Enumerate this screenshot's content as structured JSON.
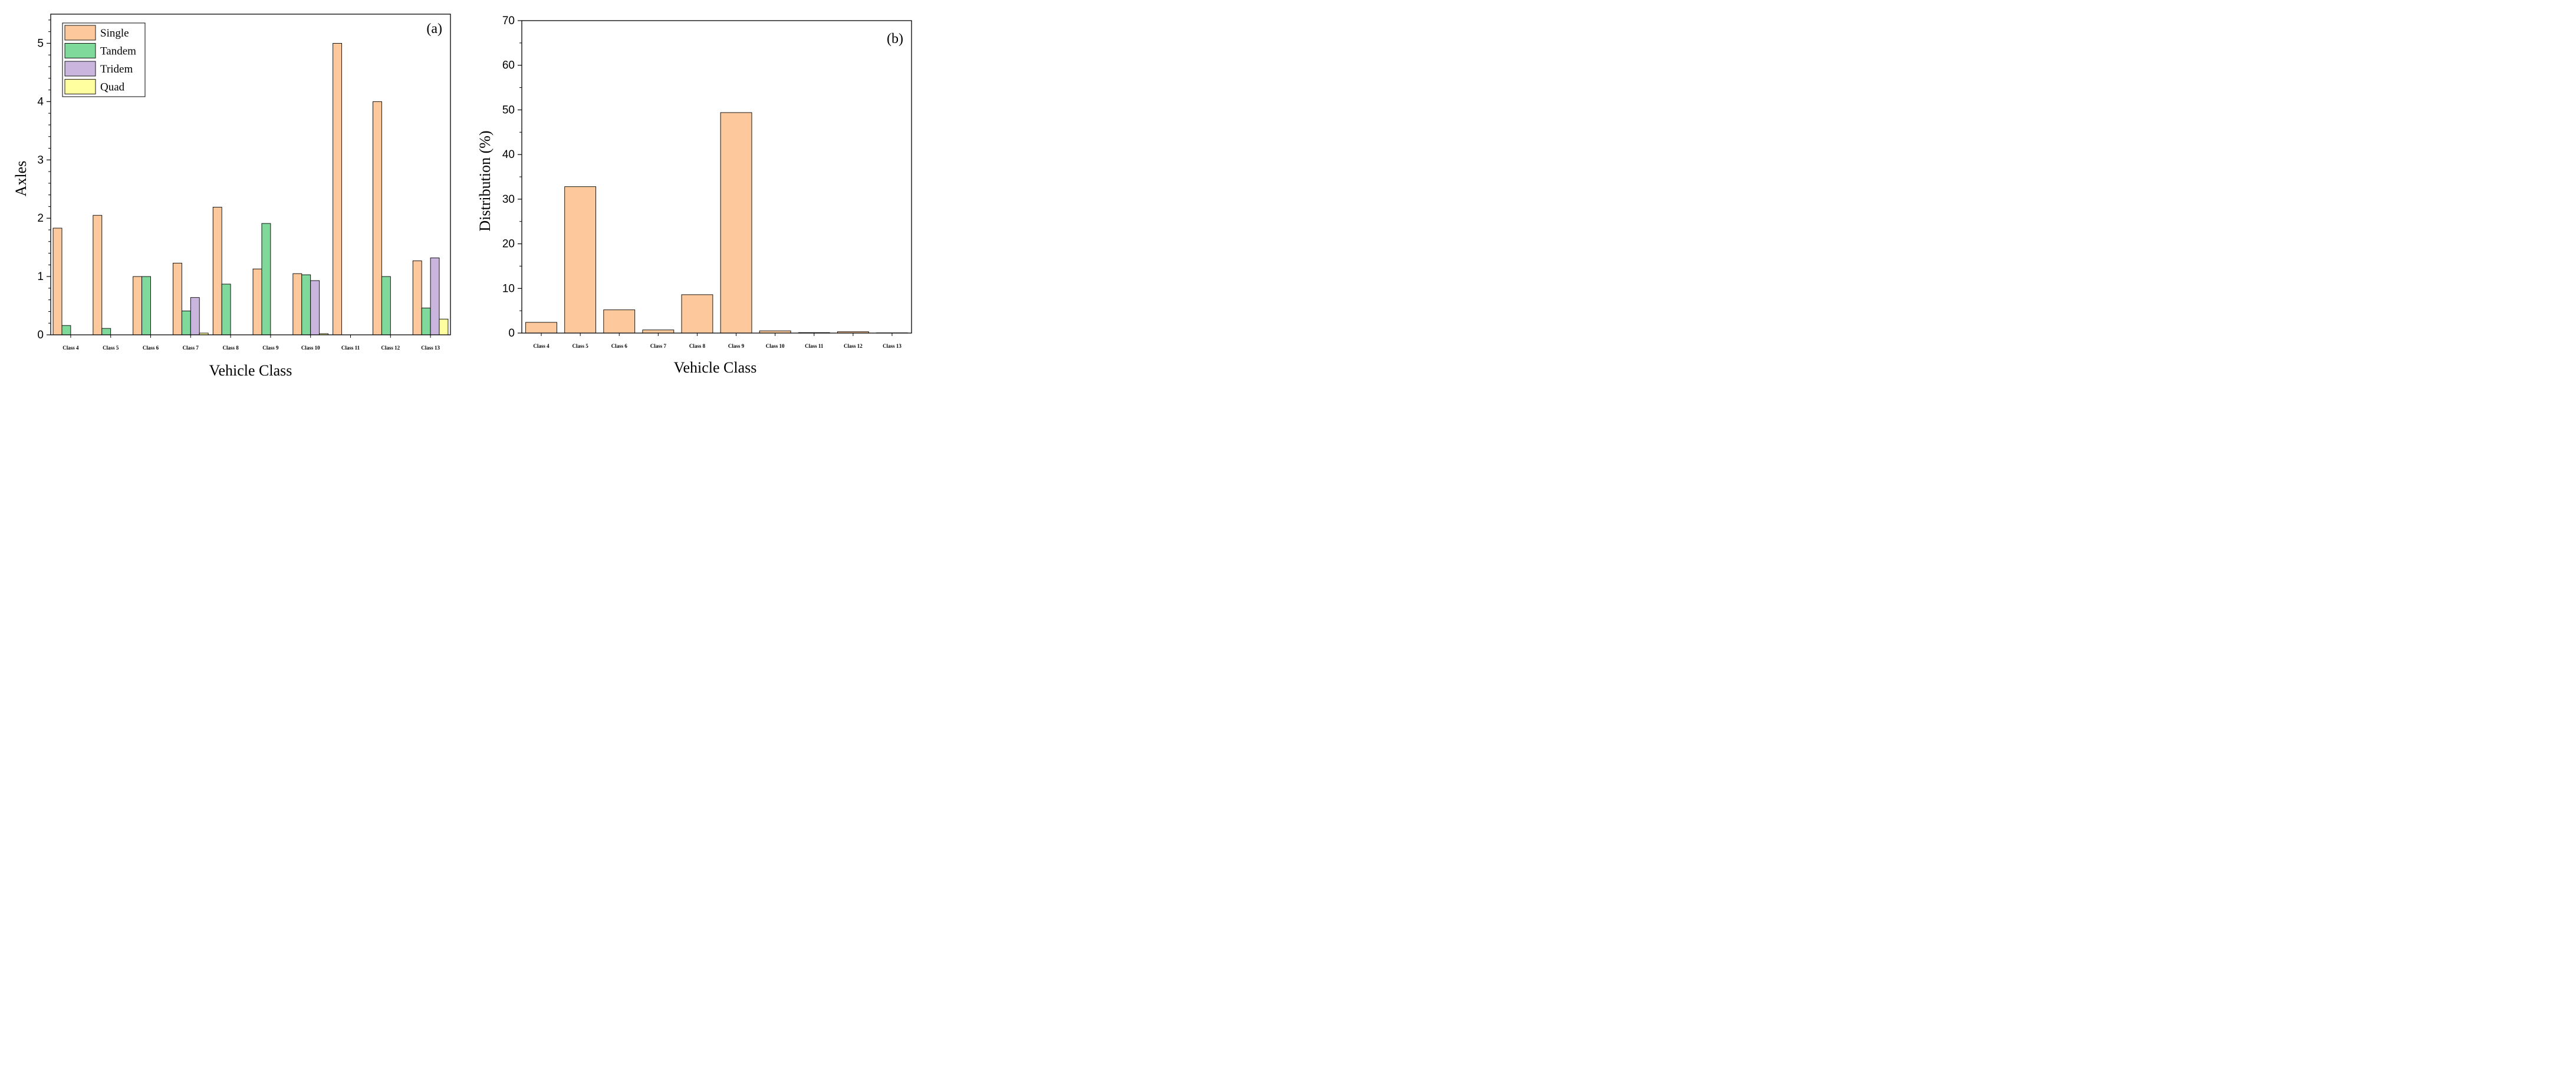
{
  "chart_data": [
    {
      "panel": "(a)",
      "type": "bar",
      "title": "",
      "xlabel": "Vehicle Class",
      "ylabel": "Axles",
      "ylim": [
        0,
        5.5
      ],
      "yticks": [
        "0",
        "1",
        "2",
        "3",
        "4",
        "5"
      ],
      "grid": false,
      "legend_position": "top-left",
      "categories": [
        "Class 4",
        "Class 5",
        "Class 6",
        "Class 7",
        "Class 8",
        "Class 9",
        "Class 10",
        "Class 11",
        "Class 12",
        "Class 13"
      ],
      "series": [
        {
          "name": "Single",
          "color": "#fdc99c",
          "values": [
            1.83,
            2.05,
            1.0,
            1.23,
            2.19,
            1.13,
            1.05,
            5.0,
            4.0,
            1.27
          ]
        },
        {
          "name": "Tandem",
          "color": "#7fd99a",
          "values": [
            0.16,
            0.11,
            1.0,
            0.41,
            0.87,
            1.91,
            1.03,
            0.0,
            1.0,
            0.46
          ]
        },
        {
          "name": "Tridem",
          "color": "#c9b5dd",
          "values": [
            0.0,
            0.0,
            0.0,
            0.64,
            0.0,
            0.0,
            0.93,
            0.0,
            0.0,
            1.32
          ]
        },
        {
          "name": "Quad",
          "color": "#ffffa0",
          "values": [
            0.0,
            0.0,
            0.0,
            0.03,
            0.0,
            0.0,
            0.02,
            0.0,
            0.0,
            0.27
          ]
        }
      ]
    },
    {
      "panel": "(b)",
      "type": "bar",
      "title": "",
      "xlabel": "Vehicle Class",
      "ylabel": "Distribution (%)",
      "ylim": [
        0,
        70
      ],
      "yticks": [
        "0",
        "10",
        "20",
        "30",
        "40",
        "50",
        "60",
        "70"
      ],
      "grid": false,
      "categories": [
        "Class 4",
        "Class 5",
        "Class 6",
        "Class 7",
        "Class 8",
        "Class 9",
        "Class 10",
        "Class 11",
        "Class 12",
        "Class 13"
      ],
      "series": [
        {
          "name": "Distribution",
          "color": "#fdc99c",
          "values": [
            2.4,
            32.8,
            5.2,
            0.7,
            8.6,
            49.4,
            0.5,
            0.1,
            0.3,
            0.05
          ]
        }
      ]
    }
  ]
}
